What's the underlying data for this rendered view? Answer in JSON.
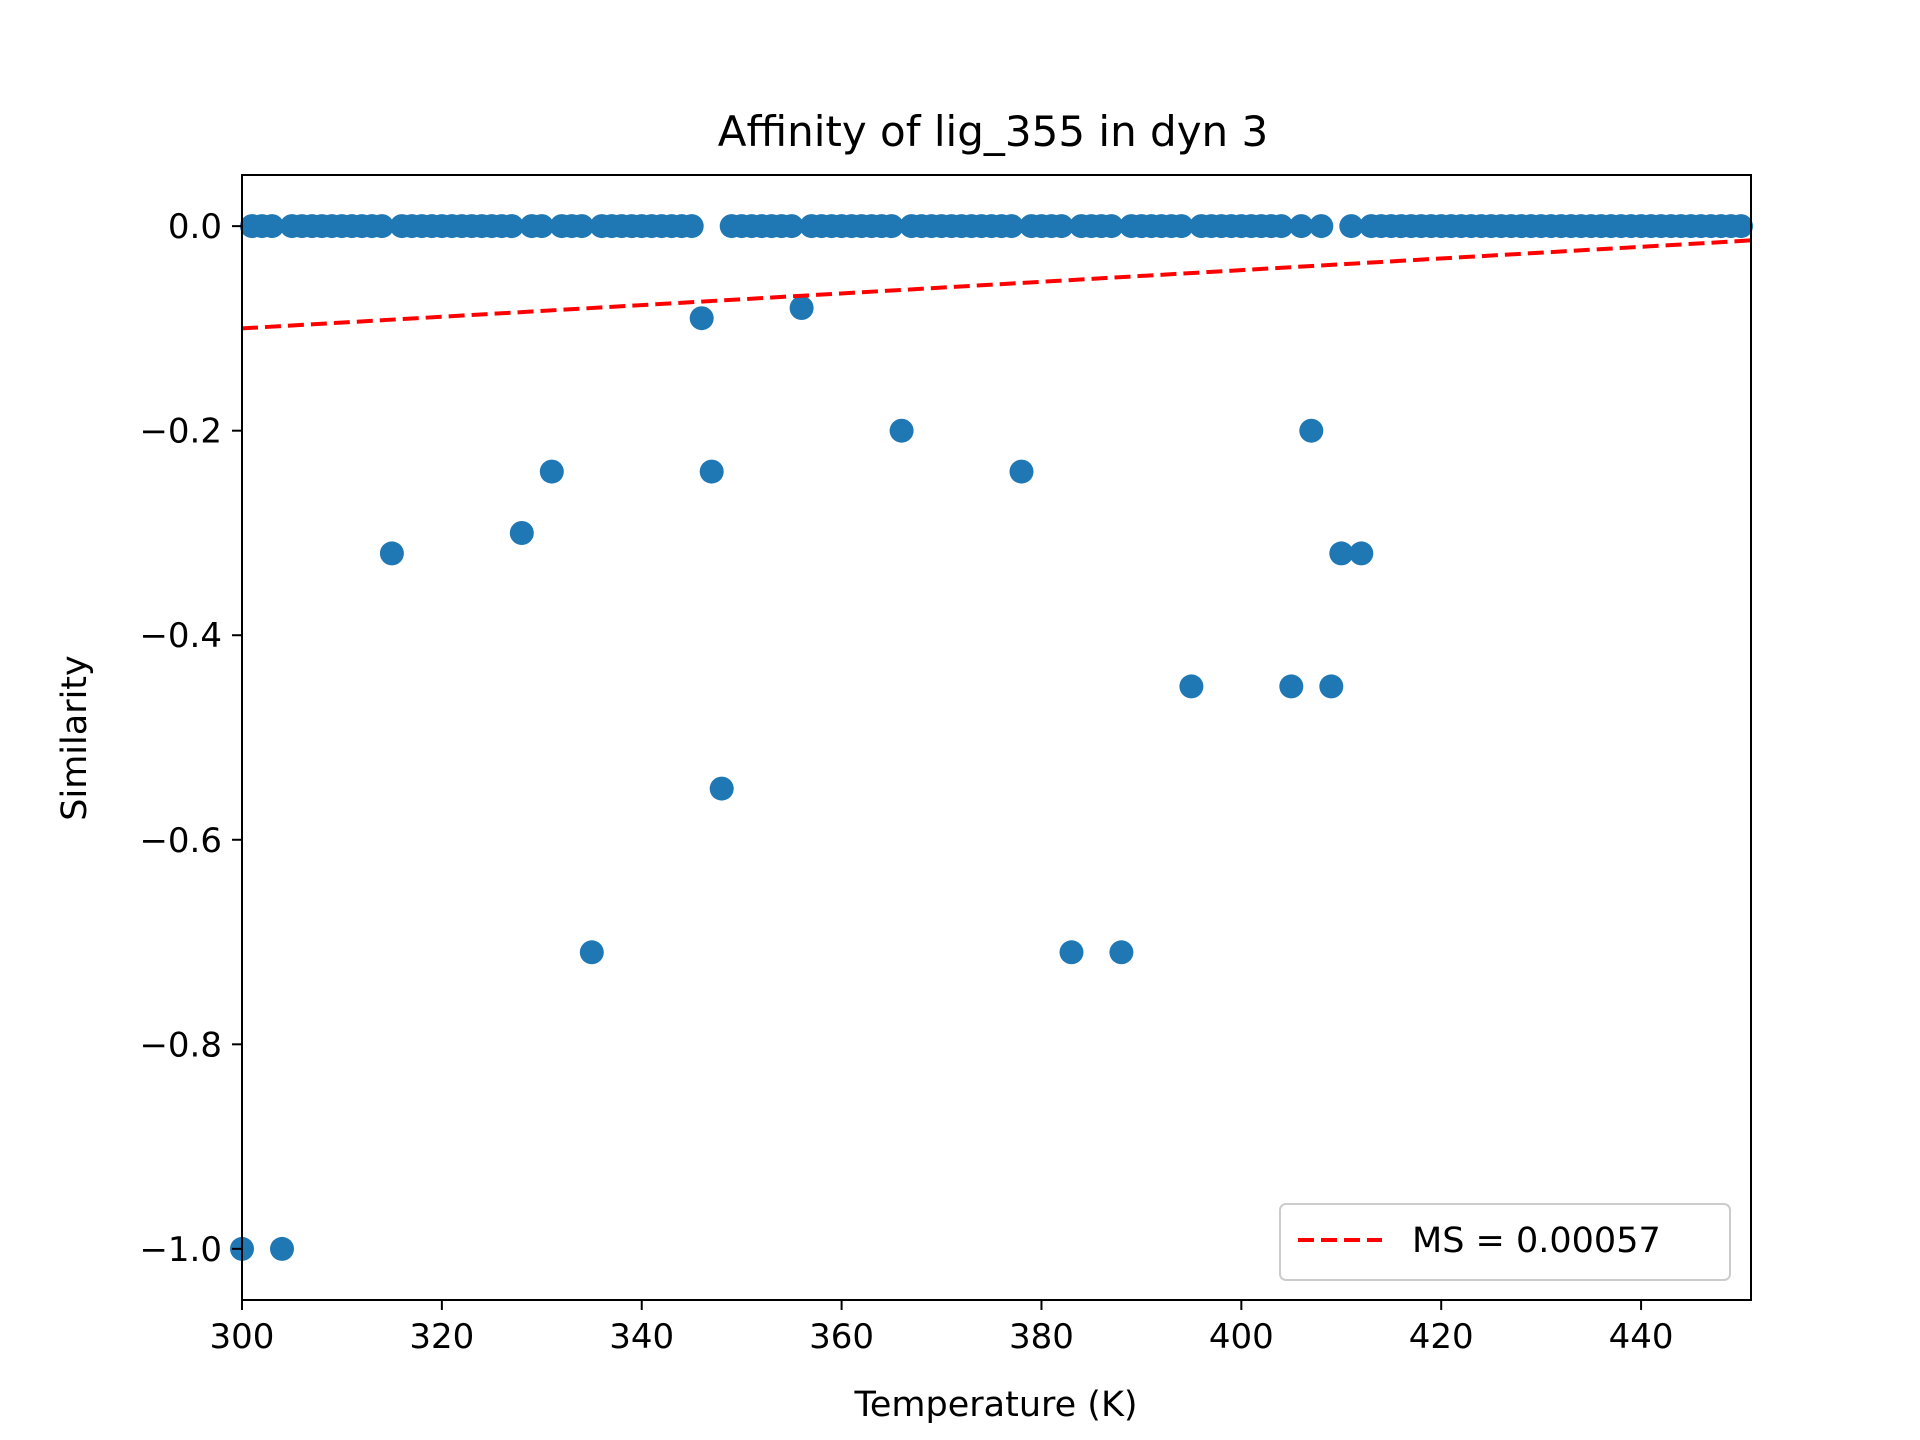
{
  "chart_data": {
    "type": "scatter",
    "title": "Affinity of lig_355 in dyn 3",
    "xlabel": "Temperature (K)",
    "ylabel": "Similarity",
    "xlim": [
      300,
      451
    ],
    "ylim": [
      -1.05,
      0.05
    ],
    "xticks": [
      300,
      320,
      340,
      360,
      380,
      400,
      420,
      440
    ],
    "xtick_labels": [
      "300",
      "320",
      "340",
      "360",
      "380",
      "400",
      "420",
      "440"
    ],
    "yticks": [
      0.0,
      -0.2,
      -0.4,
      -0.6,
      -0.8,
      -1.0
    ],
    "ytick_labels": [
      "0.0",
      "−0.2",
      "−0.4",
      "−0.6",
      "−0.8",
      "−1.0"
    ],
    "grid": false,
    "legend_position": "lower-right",
    "series": [
      {
        "kind": "scatter",
        "color": "#1f77b4",
        "x": [
          300,
          301,
          302,
          303,
          304,
          305,
          306,
          307,
          308,
          309,
          310,
          311,
          312,
          313,
          314,
          315,
          316,
          317,
          318,
          319,
          320,
          321,
          322,
          323,
          324,
          325,
          326,
          327,
          328,
          329,
          330,
          331,
          332,
          333,
          334,
          335,
          336,
          337,
          338,
          339,
          340,
          341,
          342,
          343,
          344,
          345,
          346,
          347,
          348,
          349,
          350,
          351,
          352,
          353,
          354,
          355,
          356,
          357,
          358,
          359,
          360,
          361,
          362,
          363,
          364,
          365,
          366,
          367,
          368,
          369,
          370,
          371,
          372,
          373,
          374,
          375,
          376,
          377,
          378,
          379,
          380,
          381,
          382,
          383,
          384,
          385,
          386,
          387,
          388,
          389,
          390,
          391,
          392,
          393,
          394,
          395,
          396,
          397,
          398,
          399,
          400,
          401,
          402,
          403,
          404,
          405,
          406,
          407,
          408,
          409,
          410,
          411,
          412,
          413,
          414,
          415,
          416,
          417,
          418,
          419,
          420,
          421,
          422,
          423,
          424,
          425,
          426,
          427,
          428,
          429,
          430,
          431,
          432,
          433,
          434,
          435,
          436,
          437,
          438,
          439,
          440,
          441,
          442,
          443,
          444,
          445,
          446,
          447,
          448,
          449,
          450
        ],
        "y": [
          -1.0,
          0,
          0,
          0,
          -1.0,
          0,
          0,
          0,
          0,
          0,
          0,
          0,
          0,
          0,
          0,
          -0.32,
          0,
          0,
          0,
          0,
          0,
          0,
          0,
          0,
          0,
          0,
          0,
          0,
          -0.3,
          0,
          0,
          -0.24,
          0,
          0,
          0,
          -0.71,
          0,
          0,
          0,
          0,
          0,
          0,
          0,
          0,
          0,
          0,
          -0.09,
          -0.24,
          -0.55,
          0,
          0,
          0,
          0,
          0,
          0,
          0,
          -0.08,
          0,
          0,
          0,
          0,
          0,
          0,
          0,
          0,
          0,
          -0.2,
          0,
          0,
          0,
          0,
          0,
          0,
          0,
          0,
          0,
          0,
          0,
          -0.24,
          0,
          0,
          0,
          0,
          -0.71,
          0,
          0,
          0,
          0,
          -0.71,
          0,
          0,
          0,
          0,
          0,
          0,
          -0.45,
          0,
          0,
          0,
          0,
          0,
          0,
          0,
          0,
          0,
          -0.45,
          0,
          -0.2,
          0,
          -0.45,
          -0.32,
          0,
          -0.32,
          0,
          0,
          0,
          0,
          0,
          0,
          0,
          0,
          0,
          0,
          0,
          0,
          0,
          0,
          0,
          0,
          0,
          0,
          0,
          0,
          0,
          0,
          0,
          0,
          0,
          0,
          0,
          0,
          0,
          0,
          0,
          0,
          0,
          0,
          0,
          0,
          0,
          0
        ]
      },
      {
        "kind": "line",
        "name": "MS = 0.00057",
        "color": "#ff0000",
        "style": "dashed",
        "x": [
          300,
          451
        ],
        "y": [
          -0.1,
          -0.0139
        ]
      }
    ]
  }
}
